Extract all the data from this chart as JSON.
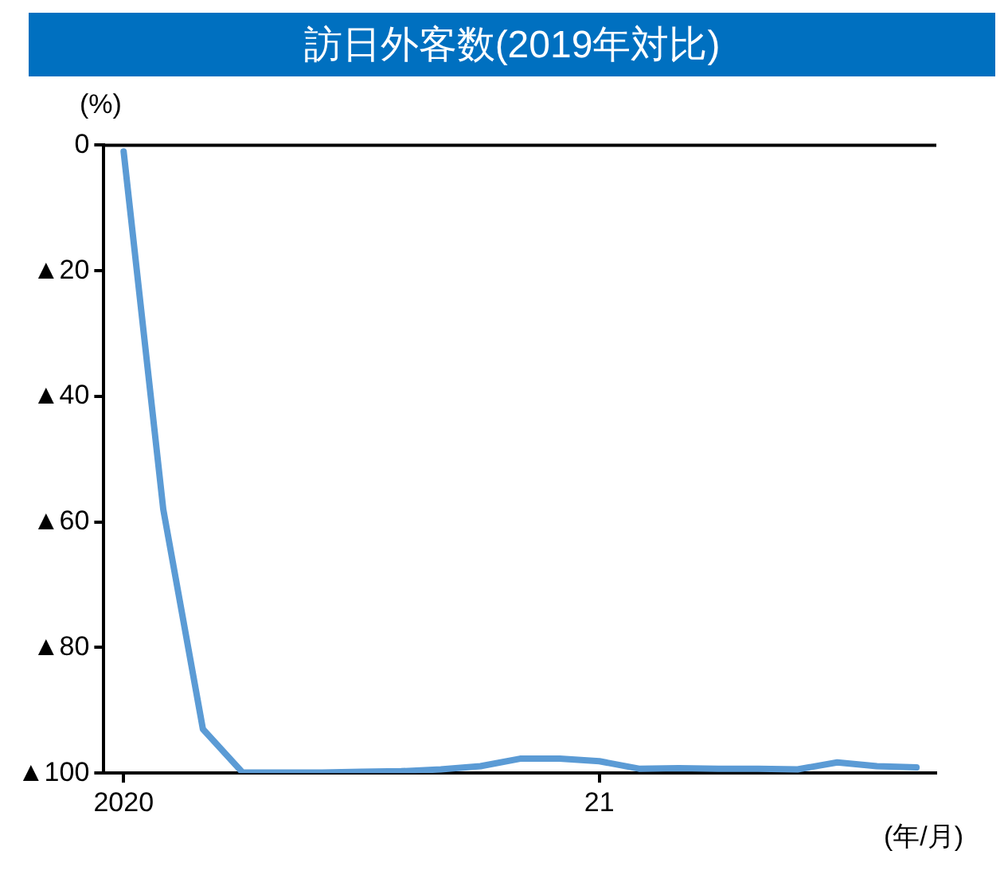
{
  "chart_data": {
    "type": "line",
    "title": "訪日外客数(2019年対比)",
    "ylabel": "(%)",
    "xlabel": "(年/月)",
    "categories": [
      "2020",
      null,
      null,
      null,
      null,
      null,
      null,
      null,
      null,
      null,
      null,
      null,
      "21",
      null,
      null,
      null,
      null,
      null,
      null,
      null,
      null
    ],
    "series": [
      {
        "color": "#5b9bd5",
        "values": [
          -1,
          -58,
          -93,
          -99.9,
          -99.9,
          -99.9,
          -99.8,
          -99.7,
          -99.4,
          -98.9,
          -97.7,
          -97.7,
          -98.1,
          -99.3,
          -99.2,
          -99.3,
          -99.3,
          -99.4,
          -98.3,
          -98.9,
          -99.1
        ]
      }
    ],
    "ylim": [
      -100,
      0
    ],
    "yticks": [
      {
        "value": -100,
        "label": "▲100"
      },
      {
        "value": -80,
        "label": "▲80"
      },
      {
        "value": -60,
        "label": "▲60"
      },
      {
        "value": -40,
        "label": "▲40"
      },
      {
        "value": -20,
        "label": "▲20"
      },
      0
    ],
    "ref_lines": [
      {
        "axis": "y",
        "value": 0,
        "color": "#000000"
      }
    ],
    "grid": false,
    "legend": false,
    "marker": "none",
    "line_style": "solid"
  }
}
